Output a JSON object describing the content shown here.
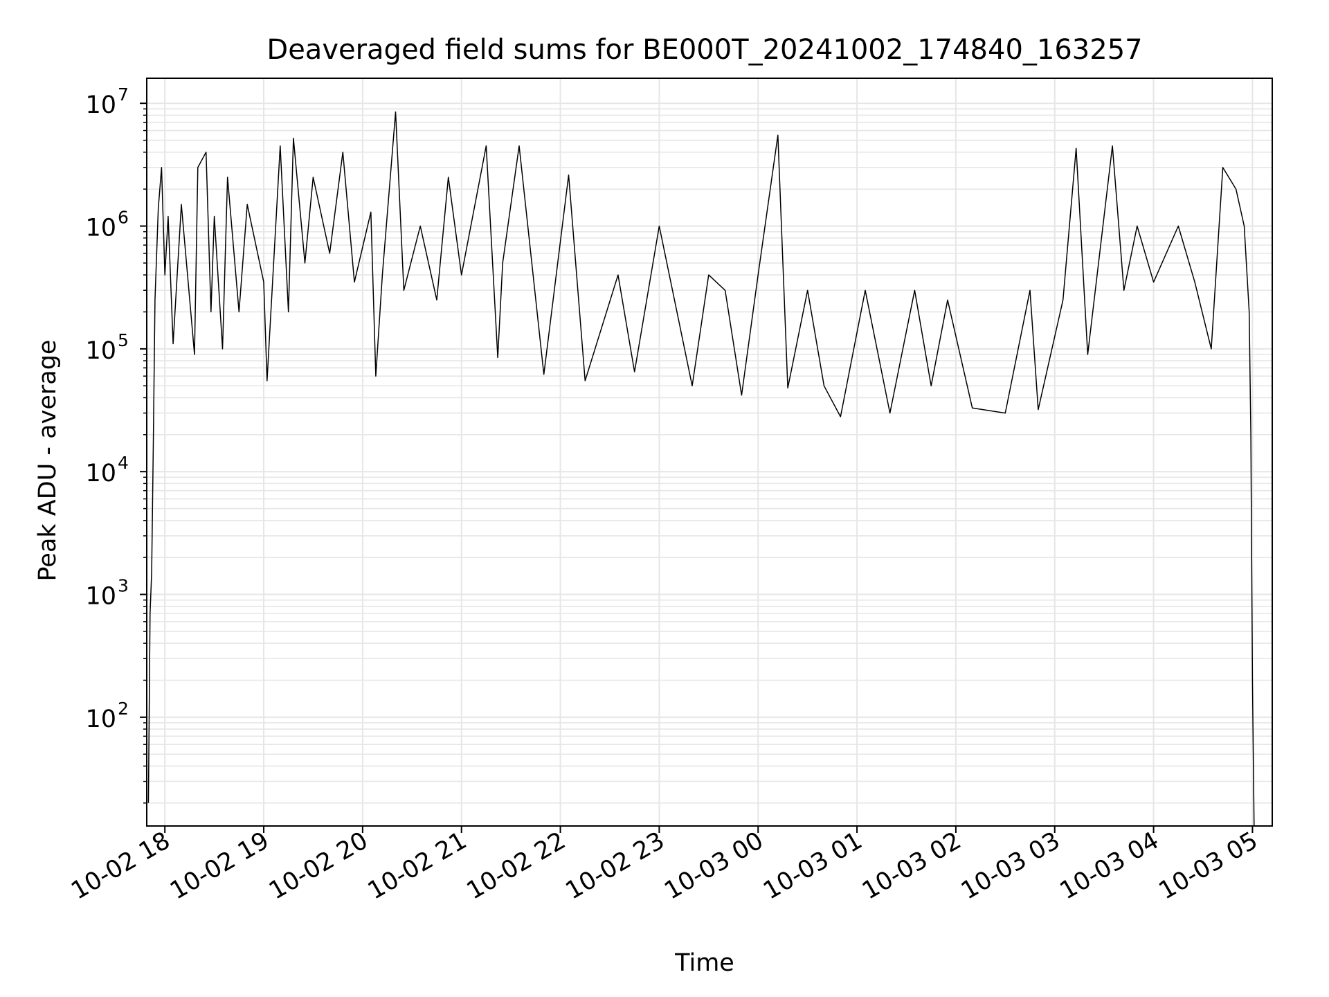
{
  "chart_data": {
    "type": "line",
    "title": "Deaveraged field sums for BE000T_20241002_174840_163257",
    "xlabel": "Time",
    "ylabel": "Peak ADU - average",
    "y_scale": "log",
    "ylim": [
      13,
      16000000
    ],
    "xlim": [
      "2024-10-02 17:49",
      "2024-10-03 05:12"
    ],
    "grid": true,
    "line_color": "#000000",
    "x_ticks": [
      {
        "t": "2024-10-02 18:00",
        "label": "10-02 18"
      },
      {
        "t": "2024-10-02 19:00",
        "label": "10-02 19"
      },
      {
        "t": "2024-10-02 20:00",
        "label": "10-02 20"
      },
      {
        "t": "2024-10-02 21:00",
        "label": "10-02 21"
      },
      {
        "t": "2024-10-02 22:00",
        "label": "10-02 22"
      },
      {
        "t": "2024-10-02 23:00",
        "label": "10-02 23"
      },
      {
        "t": "2024-10-03 00:00",
        "label": "10-03 00"
      },
      {
        "t": "2024-10-03 01:00",
        "label": "10-03 01"
      },
      {
        "t": "2024-10-03 02:00",
        "label": "10-03 02"
      },
      {
        "t": "2024-10-03 03:00",
        "label": "10-03 03"
      },
      {
        "t": "2024-10-03 04:00",
        "label": "10-03 04"
      },
      {
        "t": "2024-10-03 05:00",
        "label": "10-03 05"
      }
    ],
    "y_ticks": [
      {
        "value": 100,
        "mantissa": "10",
        "exp": "2"
      },
      {
        "value": 1000,
        "mantissa": "10",
        "exp": "3"
      },
      {
        "value": 10000,
        "mantissa": "10",
        "exp": "4"
      },
      {
        "value": 100000,
        "mantissa": "10",
        "exp": "5"
      },
      {
        "value": 1000000,
        "mantissa": "10",
        "exp": "6"
      },
      {
        "value": 10000000,
        "mantissa": "10",
        "exp": "7"
      }
    ],
    "series": [
      {
        "x": [
          "2024-10-02 17:50",
          "2024-10-02 17:51",
          "2024-10-02 17:52",
          "2024-10-02 17:53",
          "2024-10-02 17:54",
          "2024-10-02 17:56",
          "2024-10-02 17:58",
          "2024-10-02 18:00",
          "2024-10-02 18:02",
          "2024-10-02 18:05",
          "2024-10-02 18:10",
          "2024-10-02 18:18",
          "2024-10-02 18:20",
          "2024-10-02 18:25",
          "2024-10-02 18:28",
          "2024-10-02 18:30",
          "2024-10-02 18:35",
          "2024-10-02 18:38",
          "2024-10-02 18:45",
          "2024-10-02 18:50",
          "2024-10-02 19:00",
          "2024-10-02 19:02",
          "2024-10-02 19:10",
          "2024-10-02 19:15",
          "2024-10-02 19:18",
          "2024-10-02 19:25",
          "2024-10-02 19:30",
          "2024-10-02 19:40",
          "2024-10-02 19:48",
          "2024-10-02 19:55",
          "2024-10-02 20:05",
          "2024-10-02 20:08",
          "2024-10-02 20:12",
          "2024-10-02 20:20",
          "2024-10-02 20:25",
          "2024-10-02 20:35",
          "2024-10-02 20:45",
          "2024-10-02 20:52",
          "2024-10-02 21:00",
          "2024-10-02 21:15",
          "2024-10-02 21:22",
          "2024-10-02 21:25",
          "2024-10-02 21:35",
          "2024-10-02 21:50",
          "2024-10-02 22:05",
          "2024-10-02 22:15",
          "2024-10-02 22:35",
          "2024-10-02 22:45",
          "2024-10-02 23:00",
          "2024-10-02 23:20",
          "2024-10-02 23:30",
          "2024-10-02 23:40",
          "2024-10-02 23:50",
          "2024-10-03 00:00",
          "2024-10-03 00:12",
          "2024-10-03 00:18",
          "2024-10-03 00:30",
          "2024-10-03 00:40",
          "2024-10-03 00:50",
          "2024-10-03 01:05",
          "2024-10-03 01:20",
          "2024-10-03 01:35",
          "2024-10-03 01:45",
          "2024-10-03 01:55",
          "2024-10-03 02:10",
          "2024-10-03 02:30",
          "2024-10-03 02:45",
          "2024-10-03 02:50",
          "2024-10-03 03:05",
          "2024-10-03 03:13",
          "2024-10-03 03:20",
          "2024-10-03 03:35",
          "2024-10-03 03:42",
          "2024-10-03 03:50",
          "2024-10-03 04:00",
          "2024-10-03 04:15",
          "2024-10-03 04:25",
          "2024-10-03 04:35",
          "2024-10-03 04:42",
          "2024-10-03 04:50",
          "2024-10-03 04:55",
          "2024-10-03 04:58",
          "2024-10-03 04:59",
          "2024-10-03 05:00",
          "2024-10-03 05:01"
        ],
        "y": [
          20,
          700,
          1500,
          17000,
          250000,
          1400000,
          3000000,
          400000,
          1200000,
          110000,
          1500000,
          90000,
          3000000,
          4000000,
          200000,
          1200000,
          100000,
          2500000,
          200000,
          1500000,
          350000,
          55000,
          4500000,
          200000,
          5200000,
          500000,
          2500000,
          600000,
          4000000,
          350000,
          1300000,
          60000,
          400000,
          8500000,
          300000,
          1000000,
          250000,
          2500000,
          400000,
          4500000,
          85000,
          500000,
          4500000,
          62000,
          2600000,
          55000,
          400000,
          65000,
          1000000,
          50000,
          400000,
          300000,
          42000,
          400000,
          5500000,
          48000,
          300000,
          50000,
          28000,
          300000,
          30000,
          300000,
          50000,
          250000,
          33000,
          30000,
          300000,
          32000,
          250000,
          4300000,
          90000,
          4500000,
          300000,
          1000000,
          350000,
          1000000,
          350000,
          100000,
          3000000,
          2000000,
          1000000,
          200000,
          20000,
          200,
          13
        ]
      }
    ]
  }
}
